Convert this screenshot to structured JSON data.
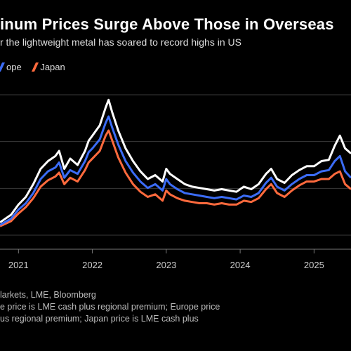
{
  "header": {
    "title": "inum Prices Surge Above Those in Overseas",
    "subtitle": "r the lightweight metal has soared to record highs in US"
  },
  "legend": {
    "europe_label": "ope",
    "japan_label": "Japan"
  },
  "colors": {
    "us": "#ffffff",
    "europe": "#3b6cf6",
    "japan": "#ff6a3d",
    "grid": "#3a3a3a",
    "background": "#000000"
  },
  "footer": {
    "source": "larkets, LME, Bloomberg",
    "note_line1": "e price is LME cash plus regional premium; Europe price",
    "note_line2": "us regional premium; Japan price is LME cash plus"
  },
  "chart_data": {
    "type": "line",
    "x_ticks": [
      "2021",
      "2022",
      "2023",
      "2024",
      "2025"
    ],
    "x_range": [
      2020.75,
      2025.5
    ],
    "y_gridlines": 4,
    "series": [
      {
        "name": "",
        "color": "#ffffff",
        "x": [
          2020.75,
          2020.9,
          2021.0,
          2021.1,
          2021.2,
          2021.3,
          2021.4,
          2021.5,
          2021.55,
          2021.62,
          2021.7,
          2021.8,
          2021.9,
          2021.95,
          2022.0,
          2022.1,
          2022.18,
          2022.22,
          2022.27,
          2022.35,
          2022.45,
          2022.55,
          2022.65,
          2022.75,
          2022.85,
          2022.95,
          2023.0,
          2023.05,
          2023.15,
          2023.25,
          2023.35,
          2023.45,
          2023.55,
          2023.65,
          2023.75,
          2023.85,
          2023.95,
          2024.05,
          2024.15,
          2024.25,
          2024.35,
          2024.42,
          2024.5,
          2024.6,
          2024.7,
          2024.8,
          2024.9,
          2025.0,
          2025.1,
          2025.2,
          2025.28,
          2025.35,
          2025.42,
          2025.5
        ],
        "y": [
          10,
          16,
          24,
          30,
          40,
          52,
          58,
          62,
          66,
          52,
          60,
          55,
          66,
          74,
          78,
          86,
          100,
          106,
          96,
          82,
          68,
          58,
          50,
          44,
          47,
          42,
          52,
          48,
          44,
          40,
          38,
          37,
          36,
          35,
          36,
          35,
          34,
          38,
          36,
          40,
          48,
          52,
          44,
          41,
          47,
          51,
          54,
          54,
          58,
          59,
          70,
          78,
          68,
          64
        ]
      },
      {
        "name": "Europe",
        "color": "#3b6cf6",
        "x": [
          2020.75,
          2020.9,
          2021.0,
          2021.1,
          2021.2,
          2021.3,
          2021.4,
          2021.5,
          2021.55,
          2021.62,
          2021.7,
          2021.8,
          2021.9,
          2021.95,
          2022.0,
          2022.1,
          2022.18,
          2022.22,
          2022.27,
          2022.35,
          2022.45,
          2022.55,
          2022.65,
          2022.75,
          2022.85,
          2022.95,
          2023.0,
          2023.05,
          2023.15,
          2023.25,
          2023.35,
          2023.45,
          2023.55,
          2023.65,
          2023.75,
          2023.85,
          2023.95,
          2024.05,
          2024.15,
          2024.25,
          2024.35,
          2024.42,
          2024.5,
          2024.6,
          2024.7,
          2024.8,
          2024.9,
          2025.0,
          2025.1,
          2025.2,
          2025.28,
          2025.35,
          2025.42,
          2025.5
        ],
        "y": [
          8,
          13,
          20,
          25,
          33,
          44,
          50,
          53,
          57,
          45,
          51,
          48,
          58,
          65,
          68,
          75,
          88,
          93,
          84,
          71,
          58,
          49,
          42,
          37,
          40,
          35,
          44,
          40,
          36,
          33,
          32,
          31,
          30,
          29,
          30,
          29,
          28,
          31,
          30,
          33,
          41,
          45,
          38,
          35,
          40,
          44,
          47,
          47,
          50,
          51,
          58,
          62,
          50,
          45
        ]
      },
      {
        "name": "Japan",
        "color": "#ff6a3d",
        "x": [
          2020.75,
          2020.9,
          2021.0,
          2021.1,
          2021.2,
          2021.3,
          2021.4,
          2021.5,
          2021.55,
          2021.62,
          2021.7,
          2021.8,
          2021.9,
          2021.95,
          2022.0,
          2022.1,
          2022.18,
          2022.22,
          2022.27,
          2022.35,
          2022.45,
          2022.55,
          2022.65,
          2022.75,
          2022.85,
          2022.95,
          2023.0,
          2023.05,
          2023.15,
          2023.25,
          2023.35,
          2023.45,
          2023.55,
          2023.65,
          2023.75,
          2023.85,
          2023.95,
          2024.05,
          2024.15,
          2024.25,
          2024.35,
          2024.42,
          2024.5,
          2024.6,
          2024.7,
          2024.8,
          2024.9,
          2025.0,
          2025.1,
          2025.2,
          2025.28,
          2025.35,
          2025.42,
          2025.5
        ],
        "y": [
          7,
          11,
          17,
          22,
          29,
          38,
          43,
          46,
          49,
          40,
          45,
          42,
          51,
          57,
          60,
          66,
          78,
          82,
          74,
          61,
          49,
          40,
          34,
          30,
          32,
          27,
          35,
          32,
          29,
          27,
          26,
          25,
          25,
          24,
          25,
          24,
          24,
          27,
          26,
          29,
          36,
          40,
          33,
          30,
          35,
          39,
          42,
          42,
          44,
          44,
          48,
          50,
          40,
          36
        ]
      }
    ]
  }
}
